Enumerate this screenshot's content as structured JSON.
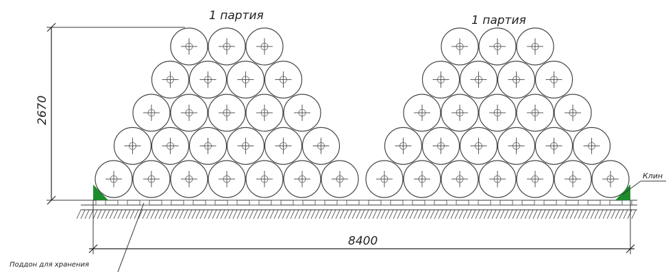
{
  "labels": {
    "batch_left": "1 партия",
    "batch_right": "1 партия",
    "height_dim": "2670",
    "width_dim": "8400",
    "wedge": "Клин",
    "pallet": "Поддон для хранения"
  },
  "stacks": [
    {
      "name": "left-stack",
      "rows_bottom_to_top": [
        7,
        6,
        5,
        4,
        3
      ]
    },
    {
      "name": "right-stack",
      "rows_bottom_to_top": [
        7,
        6,
        5,
        4,
        3
      ]
    }
  ],
  "colors": {
    "wedge": "#1e8c2c",
    "line": "#333333"
  }
}
